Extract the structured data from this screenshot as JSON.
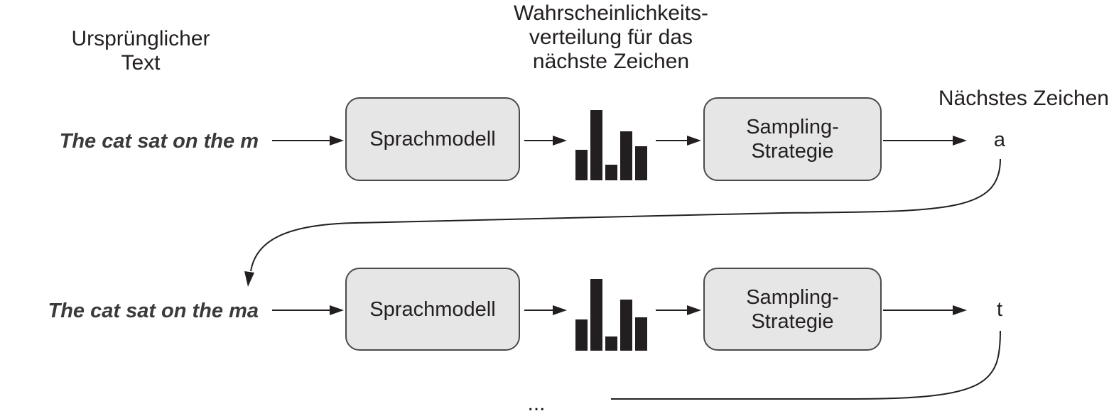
{
  "headers": {
    "original_text": "Ursprünglicher\nText",
    "distribution": "Wahrscheinlichkeits-\nverteilung für das\nnächste Zeichen",
    "next_char": "Nächstes Zeichen"
  },
  "rows": [
    {
      "input": "The cat sat on the m",
      "model": "Sprachmodell",
      "strategy": "Sampling-\nStrategie",
      "output": "a",
      "distribution": [
        0.38,
        0.88,
        0.2,
        0.62,
        0.43
      ]
    },
    {
      "input": "The cat sat on the ma",
      "model": "Sprachmodell",
      "strategy": "Sampling-\nStrategie",
      "output": "t",
      "distribution": [
        0.39,
        0.9,
        0.18,
        0.64,
        0.42
      ]
    }
  ],
  "continuation": "...",
  "colors": {
    "box_fill": "#e6e6e6",
    "box_border": "#4a4a4a",
    "bars": "#231f20",
    "lines": "#231f20"
  }
}
